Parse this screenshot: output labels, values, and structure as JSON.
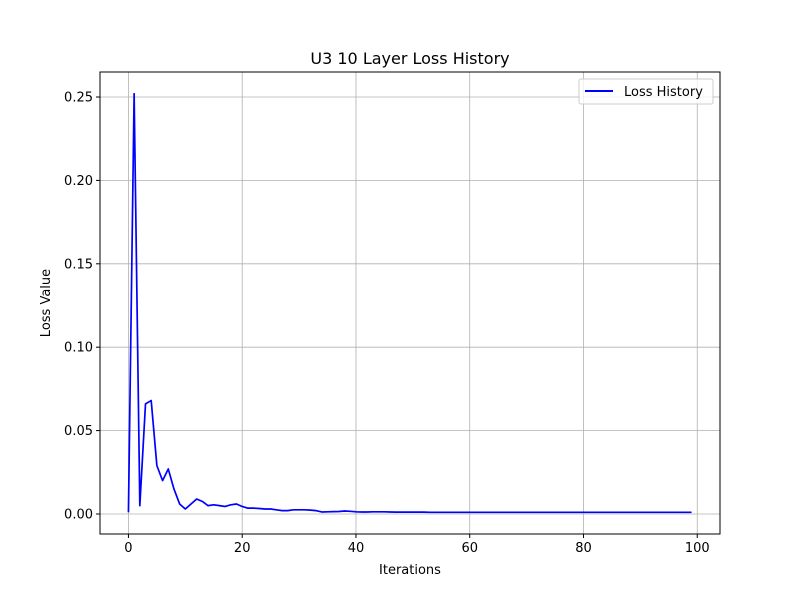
{
  "chart_data": {
    "type": "line",
    "title": "U3 10 Layer Loss History",
    "xlabel": "Iterations",
    "ylabel": "Loss Value",
    "xlim": [
      -5,
      104
    ],
    "ylim": [
      -0.012,
      0.265
    ],
    "xticks": [
      0,
      20,
      40,
      60,
      80,
      100
    ],
    "yticks": [
      0.0,
      0.05,
      0.1,
      0.15,
      0.2,
      0.25
    ],
    "xtick_labels": [
      "0",
      "20",
      "40",
      "60",
      "80",
      "100"
    ],
    "ytick_labels": [
      "0.00",
      "0.05",
      "0.10",
      "0.15",
      "0.20",
      "0.25"
    ],
    "grid": true,
    "legend_position": "top-right",
    "series": [
      {
        "name": "Loss History",
        "color": "#0000ff",
        "x": [
          0,
          1,
          2,
          3,
          4,
          5,
          6,
          7,
          8,
          9,
          10,
          11,
          12,
          13,
          14,
          15,
          16,
          17,
          18,
          19,
          20,
          21,
          22,
          23,
          24,
          25,
          26,
          27,
          28,
          29,
          30,
          31,
          32,
          33,
          34,
          35,
          36,
          37,
          38,
          39,
          40,
          41,
          42,
          43,
          44,
          45,
          46,
          47,
          48,
          49,
          50,
          51,
          52,
          53,
          54,
          55,
          56,
          57,
          58,
          59,
          60,
          61,
          62,
          63,
          64,
          65,
          66,
          67,
          68,
          69,
          70,
          71,
          72,
          73,
          74,
          75,
          76,
          77,
          78,
          79,
          80,
          81,
          82,
          83,
          84,
          85,
          86,
          87,
          88,
          89,
          90,
          91,
          92,
          93,
          94,
          95,
          96,
          97,
          98,
          99
        ],
        "y": [
          0.001,
          0.252,
          0.005,
          0.066,
          0.068,
          0.029,
          0.02,
          0.027,
          0.015,
          0.006,
          0.003,
          0.006,
          0.009,
          0.0075,
          0.005,
          0.0055,
          0.005,
          0.0045,
          0.0055,
          0.006,
          0.0045,
          0.0035,
          0.0035,
          0.0033,
          0.003,
          0.003,
          0.0025,
          0.002,
          0.002,
          0.0025,
          0.0025,
          0.0025,
          0.0023,
          0.002,
          0.0012,
          0.0013,
          0.0014,
          0.0015,
          0.0018,
          0.0016,
          0.0013,
          0.0012,
          0.0012,
          0.0013,
          0.0013,
          0.0013,
          0.0012,
          0.0011,
          0.0011,
          0.0011,
          0.0011,
          0.0011,
          0.0011,
          0.001,
          0.001,
          0.001,
          0.001,
          0.001,
          0.001,
          0.001,
          0.001,
          0.001,
          0.001,
          0.001,
          0.001,
          0.001,
          0.001,
          0.001,
          0.001,
          0.001,
          0.001,
          0.001,
          0.001,
          0.001,
          0.001,
          0.001,
          0.001,
          0.001,
          0.001,
          0.001,
          0.001,
          0.001,
          0.001,
          0.001,
          0.001,
          0.001,
          0.001,
          0.001,
          0.001,
          0.001,
          0.001,
          0.001,
          0.001,
          0.001,
          0.001,
          0.001,
          0.001,
          0.001,
          0.001,
          0.001
        ]
      }
    ]
  }
}
